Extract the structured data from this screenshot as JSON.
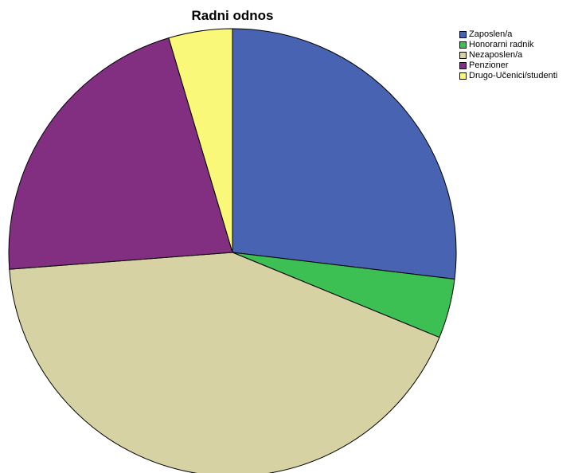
{
  "chart_data": {
    "type": "pie",
    "title": "Radni odnos",
    "legend_position": "top-right",
    "start": "12 o'clock",
    "direction": "clockwise",
    "slices": [
      {
        "label": "Zaposlen/a",
        "value": 26.9,
        "color": "#4763B2"
      },
      {
        "label": "Honorarni radnik",
        "value": 4.3,
        "color": "#3CBF53"
      },
      {
        "label": "Nezaposlen/a",
        "value": 42.6,
        "color": "#D6D2A3"
      },
      {
        "label": "Penzioner",
        "value": 21.6,
        "color": "#822E81"
      },
      {
        "label": "Drugo-Učenici/studenti",
        "value": 4.6,
        "color": "#FAF879"
      }
    ]
  }
}
